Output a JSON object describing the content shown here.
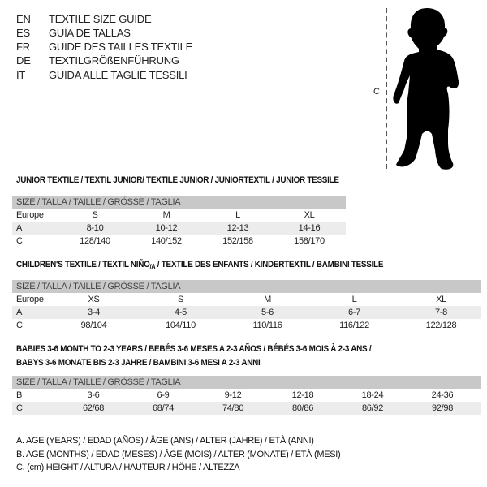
{
  "languages": [
    {
      "code": "EN",
      "title": "TEXTILE SIZE GUIDE"
    },
    {
      "code": "ES",
      "title": "GUÍA DE TALLAS"
    },
    {
      "code": "FR",
      "title": "GUIDE DES TAILLES TEXTILE"
    },
    {
      "code": "DE",
      "title": "TEXTILGRÖßENFÜHRUNG"
    },
    {
      "code": "IT",
      "title": "GUIDA ALLE TAGLIE TESSILI"
    }
  ],
  "figure": {
    "measure_label": "C",
    "icon": "child-silhouette"
  },
  "junior": {
    "title": "JUNIOR TEXTILE / TEXTIL JUNIOR/ TEXTILE JUNIOR / JUNIORTEXTIL / JUNIOR TESSILE",
    "header": "SIZE / TALLA / TAILLE / GRÖSSE / TAGLIA",
    "rows": [
      {
        "label": "Europe",
        "values": [
          "S",
          "M",
          "L",
          "XL"
        ]
      },
      {
        "label": "A",
        "values": [
          "8-10",
          "10-12",
          "12-13",
          "14-16"
        ]
      },
      {
        "label": "C",
        "values": [
          "128/140",
          "140/152",
          "152/158",
          "158/170"
        ]
      }
    ]
  },
  "children": {
    "title_main": "CHILDREN'S TEXTILE / TEXTIL NIÑO",
    "title_sub": "/A",
    "title_rest": " / TEXTILE DES ENFANTS / KINDERTEXTIL / BAMBINI TESSILE",
    "header": "SIZE / TALLA / TAILLE / GRÖSSE / TAGLIA",
    "rows": [
      {
        "label": "Europe",
        "values": [
          "XS",
          "S",
          "M",
          "L",
          "XL"
        ]
      },
      {
        "label": "A",
        "values": [
          "3-4",
          "4-5",
          "5-6",
          "6-7",
          "7-8"
        ]
      },
      {
        "label": "C",
        "values": [
          "98/104",
          "104/110",
          "110/116",
          "116/122",
          "122/128"
        ]
      }
    ]
  },
  "babies": {
    "title_line1": "BABIES 3-6 MONTH TO 2-3 YEARS / BEBÉS 3-6 MESES A 2-3 AÑOS / BÉBÉS 3-6 MOIS À 2-3 ANS /",
    "title_line2": "BABYS 3-6 MONATE BIS 2-3 JAHRE / BAMBINI 3-6 MESI A 2-3 ANNI",
    "header": "SIZE / TALLA / TAILLE / GRÖSSE / TAGLIA",
    "rows": [
      {
        "label": "B",
        "values": [
          "3-6",
          "6-9",
          "9-12",
          "12-18",
          "18-24",
          "24-36"
        ]
      },
      {
        "label": "C",
        "values": [
          "62/68",
          "68/74",
          "74/80",
          "80/86",
          "86/92",
          "92/98"
        ]
      }
    ]
  },
  "legend": [
    "A. AGE (YEARS) / EDAD (AÑOS) / ÂGE (ANS) / ALTER (JAHRE) / ETÀ (ANNI)",
    "B. AGE (MONTHS) / EDAD (MESES) / ÂGE (MOIS) / ALTER (MONATE) / ETÀ (MESI)",
    "C. (cm) HEIGHT / ALTURA / HAUTEUR / HÖHE / ALTEZZA"
  ]
}
